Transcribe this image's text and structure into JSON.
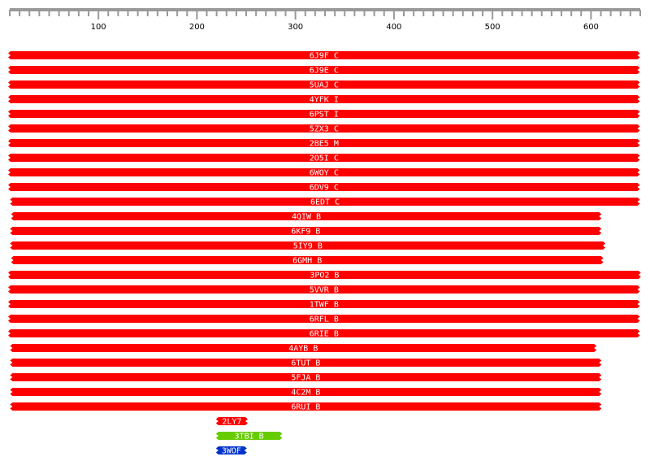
{
  "chart_data": {
    "type": "alignment-map",
    "ruler": {
      "range": [
        10,
        650
      ],
      "ticks": [
        100,
        200,
        300,
        400,
        500,
        600
      ],
      "tick_labels": [
        "100",
        "200",
        "300",
        "400",
        "500",
        "600"
      ]
    },
    "hits": [
      {
        "id": "6J9F_C",
        "start": 10,
        "end": 648,
        "color": "#ff0000"
      },
      {
        "id": "6J9E_C",
        "start": 10,
        "end": 648,
        "color": "#ff0000"
      },
      {
        "id": "5UAJ_C",
        "start": 10,
        "end": 648,
        "color": "#ff0000"
      },
      {
        "id": "4YFK_I",
        "start": 10,
        "end": 648,
        "color": "#ff0000"
      },
      {
        "id": "6PST_I",
        "start": 10,
        "end": 648,
        "color": "#ff0000"
      },
      {
        "id": "5ZX3_C",
        "start": 10,
        "end": 648,
        "color": "#ff0000"
      },
      {
        "id": "2BE5_M",
        "start": 10,
        "end": 648,
        "color": "#ff0000"
      },
      {
        "id": "2O5I_C",
        "start": 10,
        "end": 648,
        "color": "#ff0000"
      },
      {
        "id": "6WOY_C",
        "start": 10,
        "end": 648,
        "color": "#ff0000"
      },
      {
        "id": "6DV9_C",
        "start": 10,
        "end": 648,
        "color": "#ff0000"
      },
      {
        "id": "6EDT_C",
        "start": 12,
        "end": 648,
        "color": "#ff0000"
      },
      {
        "id": "4QIW_B",
        "start": 13,
        "end": 609,
        "color": "#ff0000"
      },
      {
        "id": "6KF9_B",
        "start": 12,
        "end": 609,
        "color": "#ff0000"
      },
      {
        "id": "5IY9_B",
        "start": 12,
        "end": 613,
        "color": "#ff0000"
      },
      {
        "id": "6GMH_B",
        "start": 13,
        "end": 611,
        "color": "#ff0000"
      },
      {
        "id": "3PO2_B",
        "start": 10,
        "end": 649,
        "color": "#ff0000"
      },
      {
        "id": "5VVR_B",
        "start": 10,
        "end": 648,
        "color": "#ff0000"
      },
      {
        "id": "1TWF_B",
        "start": 10,
        "end": 648,
        "color": "#ff0000"
      },
      {
        "id": "6RFL_B",
        "start": 10,
        "end": 648,
        "color": "#ff0000"
      },
      {
        "id": "6RIE_B",
        "start": 10,
        "end": 648,
        "color": "#ff0000"
      },
      {
        "id": "4AYB_B",
        "start": 12,
        "end": 604,
        "color": "#ff0000"
      },
      {
        "id": "6TUT_B",
        "start": 12,
        "end": 609,
        "color": "#ff0000"
      },
      {
        "id": "5FJA_B",
        "start": 12,
        "end": 609,
        "color": "#ff0000"
      },
      {
        "id": "4C2M_B",
        "start": 12,
        "end": 609,
        "color": "#ff0000"
      },
      {
        "id": "6RUI_B",
        "start": 12,
        "end": 609,
        "color": "#ff0000"
      },
      {
        "id": "2LY7",
        "start": 221,
        "end": 250,
        "color": "#ff0000"
      },
      {
        "id": "3TBI_B",
        "start": 221,
        "end": 285,
        "color": "#66cc00"
      },
      {
        "id": "3WOF",
        "start": 221,
        "end": 249,
        "color": "#0033cc"
      }
    ]
  }
}
